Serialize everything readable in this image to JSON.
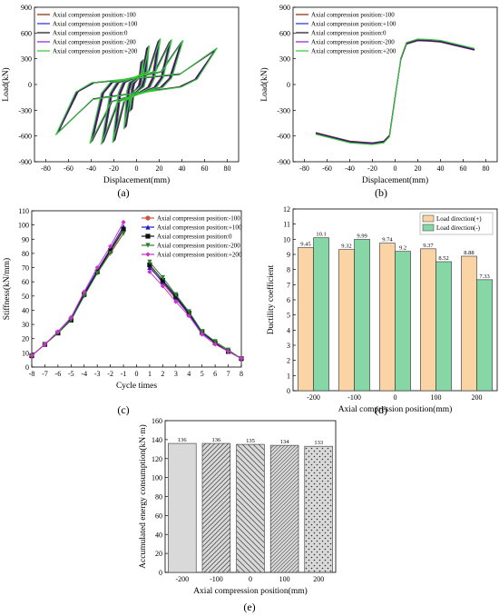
{
  "panel_labels": [
    "(a)",
    "(b)",
    "(c)",
    "(d)",
    "(e)"
  ],
  "colors": {
    "series": [
      "#8b2500",
      "#1e2fd6",
      "#111111",
      "#8a22c8",
      "#2fcb2f"
    ],
    "stiff_series": [
      "#d0533a",
      "#1a1acc",
      "#111111",
      "#2e7d32",
      "#cc33cc"
    ],
    "bar_pos": "#fbd4a6",
    "bar_neg": "#86d7a5",
    "energy_bar": "#d9d9d9"
  },
  "chart_data": [
    {
      "id": "a",
      "type": "line",
      "xlabel": "Displacement(mm)",
      "ylabel": "Load(kN)",
      "xlim": [
        -90,
        90
      ],
      "ylim": [
        -900,
        900
      ],
      "xticks": [
        -80,
        -60,
        -40,
        -20,
        0,
        20,
        40,
        60,
        80
      ],
      "yticks": [
        -900,
        -600,
        -300,
        0,
        300,
        600,
        900
      ],
      "legend": "top-left",
      "series": [
        {
          "name": "Axial compression position:-100"
        },
        {
          "name": "Axial compression position:+100"
        },
        {
          "name": "Axial compression position:0"
        },
        {
          "name": "Axial compression position:-200"
        },
        {
          "name": "Axial compression position:+200"
        }
      ],
      "hysteresis_peaks": {
        "disp": [
          5,
          10,
          20,
          30,
          40,
          70
        ],
        "pos_load": [
          280,
          440,
          520,
          510,
          500,
          410
        ],
        "neg_load": [
          -300,
          -500,
          -660,
          -680,
          -670,
          -570
        ]
      }
    },
    {
      "id": "b",
      "type": "line",
      "xlabel": "Displacement(mm)",
      "ylabel": "Load(kN)",
      "xlim": [
        -90,
        90
      ],
      "ylim": [
        -900,
        900
      ],
      "xticks": [
        -80,
        -60,
        -40,
        -20,
        0,
        20,
        40,
        60,
        80
      ],
      "yticks": [
        -900,
        -600,
        -300,
        0,
        300,
        600,
        900
      ],
      "legend": "top-left",
      "series": [
        {
          "name": "Axial compression position:-100"
        },
        {
          "name": "Axial compression position:+100"
        },
        {
          "name": "Axial compression position:0"
        },
        {
          "name": "Axial compression position:-200"
        },
        {
          "name": "Axial compression position:+200"
        }
      ],
      "x": [
        -70,
        -40,
        -30,
        -20,
        -10,
        -5,
        0,
        5,
        10,
        20,
        30,
        40,
        70
      ],
      "y": [
        -570,
        -670,
        -680,
        -690,
        -670,
        -600,
        -150,
        300,
        480,
        520,
        515,
        505,
        410
      ]
    },
    {
      "id": "c",
      "type": "line",
      "xlabel": "Cycle times",
      "ylabel": "Stiffness(kN/mm)",
      "xlim": [
        -8,
        8
      ],
      "ylim": [
        0,
        110
      ],
      "xticks": [
        -8,
        -7,
        -6,
        -5,
        -4,
        -3,
        -2,
        -1,
        0,
        1,
        2,
        3,
        4,
        5,
        6,
        7,
        8
      ],
      "yticks": [
        0,
        10,
        20,
        30,
        40,
        50,
        60,
        70,
        80,
        90,
        100,
        110
      ],
      "legend": "top-right",
      "x": [
        -8,
        -7,
        -6,
        -5,
        -4,
        -3,
        -2,
        -1,
        1,
        2,
        3,
        4,
        5,
        6,
        7,
        8
      ],
      "series": [
        {
          "name": "Axial compression position:-100",
          "values": [
            8,
            16,
            24,
            33,
            51,
            67,
            81,
            96,
            71,
            59,
            48,
            37,
            24,
            17,
            11,
            6
          ]
        },
        {
          "name": "Axial compression position:+100",
          "values": [
            8,
            16,
            24,
            34,
            52,
            68,
            83,
            99,
            70,
            60,
            49,
            37,
            24,
            17,
            11,
            6
          ]
        },
        {
          "name": "Axial compression position:0",
          "values": [
            8,
            16,
            24,
            33,
            51,
            67,
            82,
            97,
            72,
            61,
            50,
            38,
            25,
            17,
            11,
            6
          ]
        },
        {
          "name": "Axial compression position:-200",
          "values": [
            8,
            16,
            24,
            33,
            50,
            66,
            80,
            94,
            74,
            63,
            51,
            39,
            25,
            18,
            12,
            6
          ]
        },
        {
          "name": "Axial compression position:+200",
          "values": [
            8,
            16,
            25,
            35,
            53,
            70,
            85,
            102,
            67,
            57,
            46,
            36,
            23,
            16,
            11,
            6
          ]
        }
      ]
    },
    {
      "id": "d",
      "type": "bar",
      "xlabel": "Axial compression position(mm)",
      "ylabel": "Ductility coefficient",
      "ylim": [
        0,
        12
      ],
      "yticks": [
        0,
        1,
        2,
        3,
        4,
        5,
        6,
        7,
        8,
        9,
        10,
        11,
        12
      ],
      "legend": "top-right",
      "categories": [
        "-200",
        "-100",
        "0",
        "100",
        "200"
      ],
      "series": [
        {
          "name": "Load direction(+)",
          "values": [
            9.45,
            9.32,
            9.74,
            9.37,
            8.88
          ]
        },
        {
          "name": "Load direction(-)",
          "values": [
            10.1,
            9.99,
            9.2,
            8.52,
            7.33
          ]
        }
      ],
      "value_labels": {
        "pos": [
          "9.45",
          "9.32",
          "9.74",
          "9.37",
          "8.88"
        ],
        "neg": [
          "10.1",
          "9.99",
          "9.2",
          "8.52",
          "7.33"
        ]
      }
    },
    {
      "id": "e",
      "type": "bar",
      "xlabel": "Axial compression position(mm)",
      "ylabel": "Accumulated energy consumption(kN·m)",
      "ylim": [
        0,
        160
      ],
      "yticks": [
        0,
        20,
        40,
        60,
        80,
        100,
        120,
        140,
        160
      ],
      "categories": [
        "-200",
        "-100",
        "0",
        "100",
        "200"
      ],
      "values": [
        136,
        136,
        135,
        134,
        133
      ],
      "value_labels": [
        "136",
        "136",
        "135",
        "134",
        "133"
      ]
    }
  ]
}
